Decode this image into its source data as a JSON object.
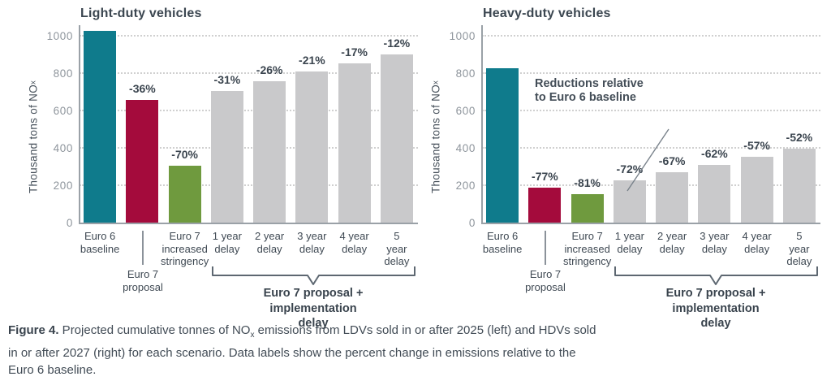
{
  "colors": {
    "teal": "#0F7B8C",
    "crimson": "#A40B3C",
    "green": "#6F9A3E",
    "gray": "#C9C9CB",
    "axis": "#9AA1A7",
    "gridline": "#D0D0D0",
    "text_dark": "#3B454F",
    "tick_text": "#8E959C"
  },
  "chart_data": [
    {
      "type": "bar",
      "title": "Light-duty vehicles",
      "ylabel": "Thousand tons of NOx",
      "ylabel_parts": {
        "prefix": "Thousand tons of NO",
        "sub": "x"
      },
      "ylim": [
        0,
        1000
      ],
      "yticks": [
        0,
        200,
        400,
        600,
        800,
        1000
      ],
      "grid": "dotted-horizontal",
      "categories": [
        "Euro 6 baseline",
        "Euro 7 proposal",
        "Euro 7 increased stringency",
        "1 year delay",
        "2 year delay",
        "3 year delay",
        "4 year delay",
        "5 year delay"
      ],
      "values": [
        1030,
        660,
        310,
        710,
        762,
        814,
        855,
        906
      ],
      "bar_labels": [
        "",
        "-36%",
        "-70%",
        "-31%",
        "-26%",
        "-21%",
        "-17%",
        "-12%"
      ],
      "bar_colors": [
        "teal",
        "crimson",
        "green",
        "gray",
        "gray",
        "gray",
        "gray",
        "gray"
      ],
      "xticks": [
        "Euro 6\nbaseline",
        "",
        "Euro 7\nincreased\nstringency",
        "1 year\ndelay",
        "2 year\ndelay",
        "3 year\ndelay",
        "4 year\ndelay",
        "5 year\ndelay"
      ],
      "callout_label": "Euro 7\nproposal",
      "bracket_label": "Euro 7 proposal +\nimplementation delay",
      "bracket_span": [
        "1 year delay",
        "5 year delay"
      ]
    },
    {
      "type": "bar",
      "title": "Heavy-duty vehicles",
      "ylabel": "Thousand tons of NOx",
      "ylabel_parts": {
        "prefix": "Thousand tons of NO",
        "sub": "x"
      },
      "ylim": [
        0,
        1000
      ],
      "yticks": [
        0,
        200,
        400,
        600,
        800,
        1000
      ],
      "grid": "dotted-horizontal",
      "categories": [
        "Euro 6 baseline",
        "Euro 7 proposal",
        "Euro 7 increased stringency",
        "1 year delay",
        "2 year delay",
        "3 year delay",
        "4 year delay",
        "5 year delay"
      ],
      "values": [
        830,
        191,
        158,
        232,
        274,
        315,
        357,
        398
      ],
      "bar_labels": [
        "",
        "-77%",
        "-81%",
        "-72%",
        "-67%",
        "-62%",
        "-57%",
        "-52%"
      ],
      "bar_colors": [
        "teal",
        "crimson",
        "green",
        "gray",
        "gray",
        "gray",
        "gray",
        "gray"
      ],
      "xticks": [
        "Euro 6\nbaseline",
        "",
        "Euro 7\nincreased\nstringency",
        "1 year\ndelay",
        "2 year\ndelay",
        "3 year\ndelay",
        "4 year\ndelay",
        "5 year\ndelay"
      ],
      "callout_label": "Euro 7\nproposal",
      "bracket_label": "Euro 7 proposal +\nimplementation delay",
      "bracket_span": [
        "1 year delay",
        "5 year delay"
      ],
      "annotation": "Reductions relative\nto Euro 6 baseline"
    }
  ],
  "caption": {
    "label": "Figure 4.",
    "before_sub": " Projected cumulative tonnes of NO",
    "sub": "x",
    "after_sub": " emissions from LDVs sold in or after 2025 (left) and HDVs sold in or after 2027 (right) for each scenario. Data labels show the percent change in emissions relative to the Euro 6 baseline."
  }
}
